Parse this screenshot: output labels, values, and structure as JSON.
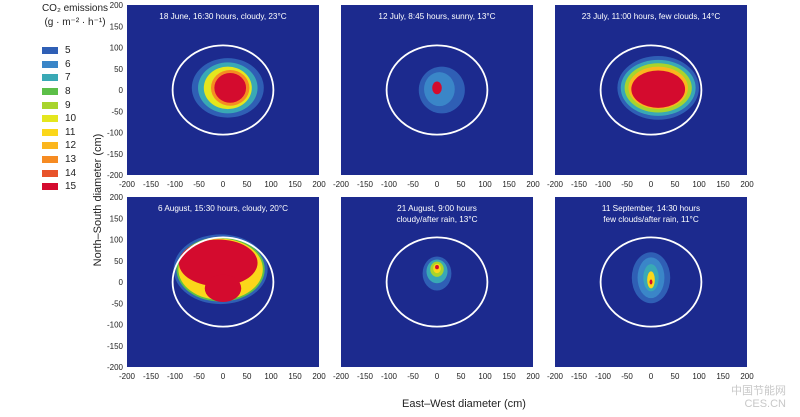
{
  "legend": {
    "title": "CO₂ emissions",
    "units": "(g · m⁻² · h⁻¹)",
    "entries": [
      {
        "label": "5",
        "color": "#2f5fb5"
      },
      {
        "label": "6",
        "color": "#3a86c8"
      },
      {
        "label": "7",
        "color": "#39a9b5"
      },
      {
        "label": "8",
        "color": "#5cbf48"
      },
      {
        "label": "9",
        "color": "#a8d42c"
      },
      {
        "label": "10",
        "color": "#e4e61e"
      },
      {
        "label": "11",
        "color": "#fbd71a"
      },
      {
        "label": "12",
        "color": "#fbb61e"
      },
      {
        "label": "13",
        "color": "#f68b22"
      },
      {
        "label": "14",
        "color": "#e8522a"
      },
      {
        "label": "15",
        "color": "#d40b2e"
      }
    ]
  },
  "background_color": "#1c2a8e",
  "chart_data": {
    "type": "heatmap",
    "xlabel": "East–West diameter (cm)",
    "ylabel": "North–South diameter (cm)",
    "xlim": [
      -200,
      200
    ],
    "ylim": [
      -200,
      200
    ],
    "xticks": [
      -200,
      -150,
      -100,
      -50,
      0,
      50,
      100,
      150,
      200
    ],
    "yticks": [
      200,
      150,
      100,
      50,
      0,
      -50,
      -100,
      -150,
      -200
    ],
    "ring_radius": 105,
    "panels": [
      {
        "title": [
          "18 June, 16:30 hours, cloudy, 23°C"
        ],
        "blobs": [
          {
            "cx": 10,
            "cy": 5,
            "rx": 75,
            "ry": 70,
            "level": 5
          },
          {
            "cx": 10,
            "cy": 5,
            "rx": 62,
            "ry": 60,
            "level": 7
          },
          {
            "cx": 10,
            "cy": 5,
            "rx": 50,
            "ry": 50,
            "level": 10
          },
          {
            "cx": 15,
            "cy": 5,
            "rx": 40,
            "ry": 42,
            "level": 13
          },
          {
            "cx": 15,
            "cy": 5,
            "rx": 33,
            "ry": 35,
            "level": 15
          }
        ]
      },
      {
        "title": [
          "12 July, 8:45 hours, sunny, 13°C"
        ],
        "blobs": [
          {
            "cx": 10,
            "cy": 0,
            "rx": 48,
            "ry": 55,
            "level": 5
          },
          {
            "cx": 5,
            "cy": 2,
            "rx": 32,
            "ry": 40,
            "level": 6
          },
          {
            "cx": 0,
            "cy": 5,
            "rx": 10,
            "ry": 15,
            "level": 15
          }
        ]
      },
      {
        "title": [
          "23 July, 11:00 hours, few clouds, 14°C"
        ],
        "blobs": [
          {
            "cx": 15,
            "cy": 5,
            "rx": 85,
            "ry": 75,
            "level": 5
          },
          {
            "cx": 15,
            "cy": 5,
            "rx": 78,
            "ry": 66,
            "level": 7
          },
          {
            "cx": 15,
            "cy": 5,
            "rx": 70,
            "ry": 58,
            "level": 9
          },
          {
            "cx": 15,
            "cy": 5,
            "rx": 62,
            "ry": 50,
            "level": 12
          },
          {
            "cx": 15,
            "cy": 2,
            "rx": 56,
            "ry": 44,
            "level": 15
          }
        ]
      },
      {
        "title": [
          "6 August, 15:30 hours, cloudy, 20°C"
        ],
        "blobs": [
          {
            "cx": -5,
            "cy": 30,
            "rx": 98,
            "ry": 82,
            "level": 5
          },
          {
            "cx": -5,
            "cy": 30,
            "rx": 92,
            "ry": 76,
            "level": 8
          },
          {
            "cx": -5,
            "cy": 30,
            "rx": 88,
            "ry": 72,
            "level": 11
          },
          {
            "cx": -10,
            "cy": 45,
            "rx": 82,
            "ry": 55,
            "level": 15
          },
          {
            "cx": 0,
            "cy": -15,
            "rx": 38,
            "ry": 32,
            "level": 15
          }
        ]
      },
      {
        "title": [
          "21 August, 9:00 hours",
          "cloudy/after rain, 13°C"
        ],
        "blobs": [
          {
            "cx": 0,
            "cy": 20,
            "rx": 30,
            "ry": 40,
            "level": 5
          },
          {
            "cx": 0,
            "cy": 25,
            "rx": 22,
            "ry": 28,
            "level": 7
          },
          {
            "cx": 0,
            "cy": 30,
            "rx": 14,
            "ry": 18,
            "level": 9
          },
          {
            "cx": 0,
            "cy": 32,
            "rx": 8,
            "ry": 11,
            "level": 11
          },
          {
            "cx": 0,
            "cy": 35,
            "rx": 4,
            "ry": 5,
            "level": 15
          }
        ]
      },
      {
        "title": [
          "11 September, 14:30 hours",
          "few clouds/after rain, 11°C"
        ],
        "blobs": [
          {
            "cx": 0,
            "cy": 10,
            "rx": 40,
            "ry": 60,
            "level": 5
          },
          {
            "cx": 0,
            "cy": 10,
            "rx": 28,
            "ry": 48,
            "level": 6
          },
          {
            "cx": 0,
            "cy": 10,
            "rx": 16,
            "ry": 32,
            "level": 7
          },
          {
            "cx": 0,
            "cy": 5,
            "rx": 8,
            "ry": 20,
            "level": 11
          },
          {
            "cx": 0,
            "cy": 0,
            "rx": 3,
            "ry": 6,
            "level": 15
          }
        ]
      }
    ]
  },
  "watermark": {
    "line1": "中国节能网",
    "line2": "CES.CN"
  }
}
